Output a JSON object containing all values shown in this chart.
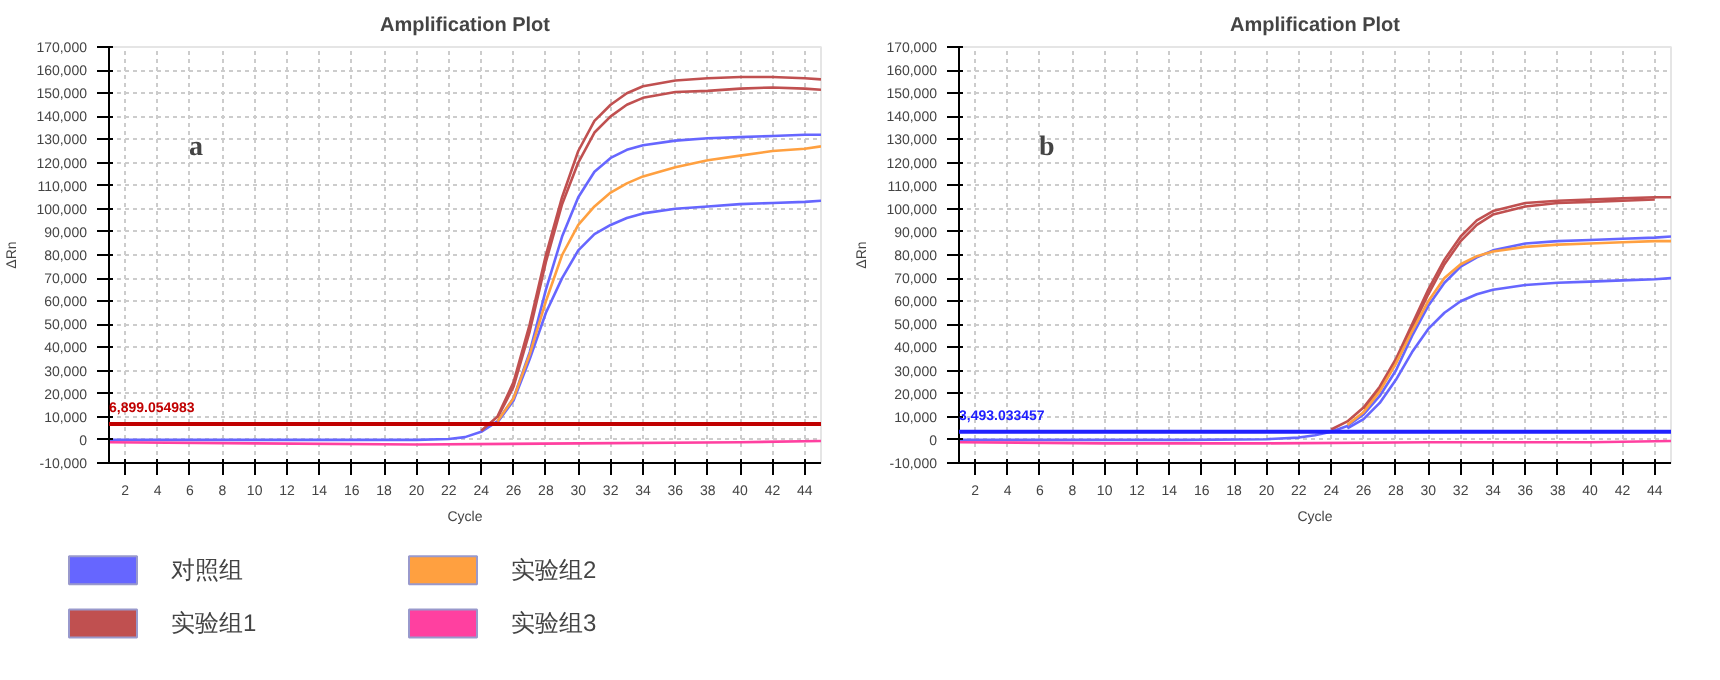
{
  "chart_data": [
    {
      "type": "line",
      "title": "Amplification Plot",
      "xlabel": "Cycle",
      "ylabel": "ΔRn",
      "annotations": [
        "a"
      ],
      "legend": "bottom",
      "grid": true,
      "marker": "none",
      "line_style": "solid",
      "xlim": [
        1,
        45
      ],
      "xticks": [
        2,
        4,
        6,
        8,
        10,
        12,
        14,
        16,
        18,
        20,
        22,
        24,
        26,
        28,
        30,
        32,
        34,
        36,
        38,
        40,
        42,
        44
      ],
      "ylim": [
        -10000,
        170000
      ],
      "yticks": [
        {
          "value": -10000,
          "label": "-10,000"
        },
        0,
        {
          "value": 10000,
          "label": "10,000"
        },
        {
          "value": 20000,
          "label": "20,000"
        },
        {
          "value": 30000,
          "label": "30,000"
        },
        {
          "value": 40000,
          "label": "40,000"
        },
        {
          "value": 50000,
          "label": "50,000"
        },
        {
          "value": 60000,
          "label": "60,000"
        },
        {
          "value": 70000,
          "label": "70,000"
        },
        {
          "value": 80000,
          "label": "80,000"
        },
        {
          "value": 90000,
          "label": "90,000"
        },
        {
          "value": 100000,
          "label": "100,000"
        },
        {
          "value": 110000,
          "label": "110,000"
        },
        {
          "value": 120000,
          "label": "120,000"
        },
        {
          "value": 130000,
          "label": "130,000"
        },
        {
          "value": 140000,
          "label": "140,000"
        },
        {
          "value": 150000,
          "label": "150,000"
        },
        {
          "value": 160000,
          "label": "160,000"
        },
        {
          "value": 170000,
          "label": "170,000"
        }
      ],
      "ref_lines": [
        {
          "axis": "y",
          "value": 6899.054983,
          "label": "6,899.054983",
          "color": "#c00000"
        }
      ],
      "series": [
        {
          "name": "对照组",
          "color": "#6666ff",
          "x": [
            1,
            5,
            10,
            15,
            20,
            22,
            23,
            24,
            25,
            26,
            27,
            28,
            29,
            30,
            31,
            32,
            33,
            34,
            36,
            38,
            40,
            42,
            44,
            45
          ],
          "values": [
            0,
            0,
            0,
            0,
            0,
            400,
            1200,
            3500,
            8000,
            18000,
            38000,
            65000,
            88000,
            105000,
            116000,
            122000,
            125500,
            127500,
            129500,
            130500,
            131000,
            131500,
            132000,
            132000
          ]
        },
        {
          "color": "#6666ff",
          "x": [
            25,
            26,
            27,
            28,
            29,
            30,
            31,
            32,
            33,
            34,
            36,
            38,
            40,
            42,
            44,
            45
          ],
          "values": [
            7500,
            17000,
            35000,
            55000,
            70000,
            82000,
            89000,
            93000,
            96000,
            98000,
            100000,
            101000,
            102000,
            102500,
            103000,
            103500
          ]
        },
        {
          "name": "实验组1",
          "color": "#c05050",
          "x": [
            24,
            25,
            26,
            27,
            28,
            29,
            30,
            31,
            32,
            33,
            34,
            36,
            38,
            40,
            42,
            44,
            45
          ],
          "values": [
            4000,
            10000,
            25000,
            50000,
            80000,
            105000,
            125000,
            138000,
            145000,
            150000,
            153000,
            155500,
            156500,
            157000,
            157000,
            156500,
            156000
          ]
        },
        {
          "color": "#c05050",
          "x": [
            25,
            26,
            27,
            28,
            29,
            30,
            31,
            32,
            33,
            34,
            36,
            38,
            40,
            42,
            44,
            45
          ],
          "values": [
            9500,
            23000,
            47000,
            77000,
            102000,
            120000,
            133000,
            140000,
            145000,
            148000,
            150500,
            151000,
            152000,
            152500,
            152000,
            151500
          ]
        },
        {
          "name": "实验组2",
          "color": "#ffa040",
          "x": [
            25,
            26,
            27,
            28,
            29,
            30,
            31,
            32,
            33,
            34,
            36,
            38,
            40,
            42,
            44,
            45
          ],
          "values": [
            8000,
            18000,
            37000,
            60000,
            80000,
            93000,
            101000,
            107000,
            111000,
            114000,
            118000,
            121000,
            123000,
            125000,
            126000,
            127000
          ]
        },
        {
          "name": "实验组3",
          "color": "#ff40a0",
          "x": [
            1,
            10,
            20,
            30,
            40,
            45
          ],
          "values": [
            -1000,
            -1500,
            -2000,
            -1500,
            -1000,
            -500
          ]
        }
      ]
    },
    {
      "type": "line",
      "title": "Amplification Plot",
      "xlabel": "Cycle",
      "ylabel": "ΔRn",
      "annotations": [
        "b"
      ],
      "grid": true,
      "marker": "none",
      "line_style": "solid",
      "xlim": [
        1,
        45
      ],
      "xticks": [
        2,
        4,
        6,
        8,
        10,
        12,
        14,
        16,
        18,
        20,
        22,
        24,
        26,
        28,
        30,
        32,
        34,
        36,
        38,
        40,
        42,
        44
      ],
      "ylim": [
        -10000,
        170000
      ],
      "yticks": [
        {
          "value": -10000,
          "label": "-10,000"
        },
        0,
        {
          "value": 10000,
          "label": "10,000"
        },
        {
          "value": 20000,
          "label": "20,000"
        },
        {
          "value": 30000,
          "label": "30,000"
        },
        {
          "value": 40000,
          "label": "40,000"
        },
        {
          "value": 50000,
          "label": "50,000"
        },
        {
          "value": 60000,
          "label": "60,000"
        },
        {
          "value": 70000,
          "label": "70,000"
        },
        {
          "value": 80000,
          "label": "80,000"
        },
        {
          "value": 90000,
          "label": "90,000"
        },
        {
          "value": 100000,
          "label": "100,000"
        },
        {
          "value": 110000,
          "label": "110,000"
        },
        {
          "value": 120000,
          "label": "120,000"
        },
        {
          "value": 130000,
          "label": "130,000"
        },
        {
          "value": 140000,
          "label": "140,000"
        },
        {
          "value": 150000,
          "label": "150,000"
        },
        {
          "value": 160000,
          "label": "160,000"
        },
        {
          "value": 170000,
          "label": "170,000"
        }
      ],
      "ref_lines": [
        {
          "axis": "y",
          "value": 3493.033457,
          "label": "3,493.033457",
          "color": "#2020ff"
        }
      ],
      "series": [
        {
          "color": "#6666ff",
          "x": [
            1,
            5,
            10,
            15,
            20,
            22,
            23,
            24,
            25,
            26,
            27,
            28,
            29,
            30,
            31,
            32,
            33,
            34,
            36,
            38,
            40,
            42,
            44,
            45
          ],
          "values": [
            0,
            0,
            0,
            0,
            300,
            1000,
            2000,
            3500,
            6000,
            11000,
            19000,
            30000,
            45000,
            58000,
            68000,
            75000,
            79000,
            82000,
            85000,
            86000,
            86500,
            87000,
            87500,
            88000
          ]
        },
        {
          "color": "#6666ff",
          "x": [
            25,
            26,
            27,
            28,
            29,
            30,
            31,
            32,
            33,
            34,
            36,
            38,
            40,
            42,
            44,
            45
          ],
          "values": [
            5000,
            9000,
            16000,
            26000,
            38000,
            48000,
            55000,
            60000,
            63000,
            65000,
            67000,
            68000,
            68500,
            69000,
            69500,
            70000
          ]
        },
        {
          "color": "#c05050",
          "x": [
            24,
            25,
            26,
            27,
            28,
            29,
            30,
            31,
            32,
            33,
            34,
            36,
            38,
            40,
            42,
            44,
            45
          ],
          "values": [
            4500,
            8000,
            14000,
            23000,
            35000,
            50000,
            65000,
            78000,
            88000,
            95000,
            99000,
            102500,
            103500,
            104000,
            104500,
            105000,
            105000
          ]
        },
        {
          "color": "#c05050",
          "x": [
            26,
            27,
            28,
            29,
            30,
            31,
            32,
            33,
            34,
            36,
            38,
            40,
            42,
            44
          ],
          "values": [
            13500,
            22000,
            34000,
            48500,
            63000,
            76000,
            86000,
            93000,
            97500,
            101000,
            102500,
            103000,
            103500,
            104000
          ]
        },
        {
          "color": "#ffa040",
          "x": [
            25,
            26,
            27,
            28,
            29,
            30,
            31,
            32,
            33,
            34,
            36,
            38,
            40,
            42,
            44,
            45
          ],
          "values": [
            6500,
            12000,
            21000,
            33000,
            47000,
            60000,
            70000,
            76000,
            79500,
            81500,
            83500,
            84500,
            85000,
            85500,
            86000,
            86000
          ]
        },
        {
          "color": "#ff40a0",
          "x": [
            1,
            10,
            20,
            30,
            40,
            45
          ],
          "values": [
            -1000,
            -1500,
            -1500,
            -1000,
            -1000,
            -500
          ]
        }
      ]
    }
  ]
}
